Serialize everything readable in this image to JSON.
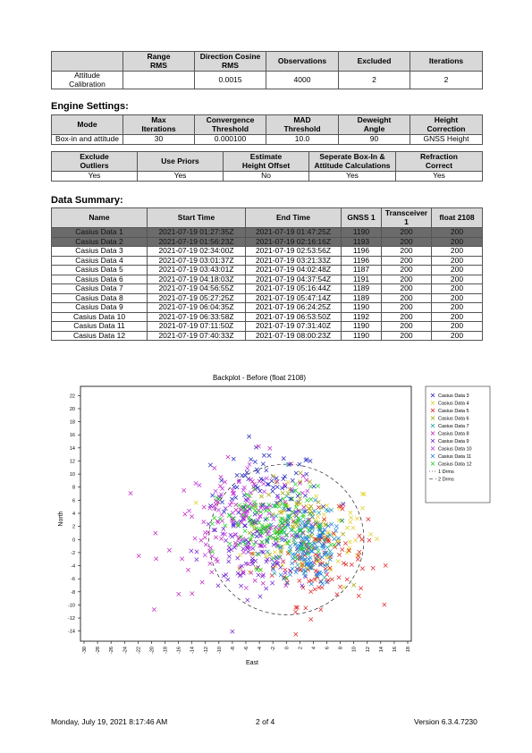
{
  "calibration": {
    "headers": [
      "",
      "Range\nRMS",
      "Direction Cosine\nRMS",
      "Observations",
      "Excluded",
      "Iterations"
    ],
    "rows": [
      [
        "Attitude\nCalibration",
        "",
        "0.0015",
        "4000",
        "2",
        "2"
      ]
    ]
  },
  "engine_settings": {
    "title": "Engine Settings:",
    "table1": {
      "headers": [
        "Mode",
        "Max\nIterations",
        "Convergence\nThreshold",
        "MAD\nThreshold",
        "Deweight\nAngle",
        "Height\nCorrection"
      ],
      "rows": [
        [
          "Box-in and attitude",
          "30",
          "0.000100",
          "10.0",
          "90",
          "GNSS Height"
        ]
      ]
    },
    "table2": {
      "headers": [
        "Exclude\nOutliers",
        "Use Priors",
        "Estimate\nHeight Offset",
        "Seperate Box-In &\nAttitude Calculations",
        "Refraction\nCorrect"
      ],
      "rows": [
        [
          "Yes",
          "Yes",
          "No",
          "Yes",
          "Yes"
        ]
      ]
    }
  },
  "data_summary": {
    "title": "Data Summary:",
    "headers": [
      "Name",
      "Start Time",
      "End Time",
      "GNSS 1",
      "Transceiver\n1",
      "float 2108"
    ],
    "rows": [
      [
        "Casius Data 1",
        "2021-07-19 01:27:35Z",
        "2021-07-19 01:47:25Z",
        "1190",
        "200",
        "200"
      ],
      [
        "Casius Data 2",
        "2021-07-19 01:56:23Z",
        "2021-07-19 02:16:16Z",
        "1193",
        "200",
        "200"
      ],
      [
        "Casius Data 3",
        "2021-07-19 02:34:00Z",
        "2021-07-19 02:53:56Z",
        "1196",
        "200",
        "200"
      ],
      [
        "Casius Data 4",
        "2021-07-19 03:01:37Z",
        "2021-07-19 03:21:33Z",
        "1196",
        "200",
        "200"
      ],
      [
        "Casius Data 5",
        "2021-07-19 03:43:01Z",
        "2021-07-19 04:02:48Z",
        "1187",
        "200",
        "200"
      ],
      [
        "Casius Data 6",
        "2021-07-19 04:18:03Z",
        "2021-07-19 04:37:54Z",
        "1191",
        "200",
        "200"
      ],
      [
        "Casius Data 7",
        "2021-07-19 04:56:55Z",
        "2021-07-19 05:16:44Z",
        "1189",
        "200",
        "200"
      ],
      [
        "Casius Data 8",
        "2021-07-19 05:27:25Z",
        "2021-07-19 05:47:14Z",
        "1189",
        "200",
        "200"
      ],
      [
        "Casius Data 9",
        "2021-07-19 06:04:35Z",
        "2021-07-19 06:24:25Z",
        "1190",
        "200",
        "200"
      ],
      [
        "Casius Data 10",
        "2021-07-19 06:33:58Z",
        "2021-07-19 06:53:50Z",
        "1192",
        "200",
        "200"
      ],
      [
        "Casius Data 11",
        "2021-07-19 07:11:50Z",
        "2021-07-19 07:31:40Z",
        "1190",
        "200",
        "200"
      ],
      [
        "Casius Data 12",
        "2021-07-19 07:40:33Z",
        "2021-07-19 08:00:23Z",
        "1190",
        "200",
        "200"
      ]
    ],
    "selected_rows": [
      0,
      1
    ],
    "selected_color": "#6b6b6b"
  },
  "chart_data": {
    "type": "scatter",
    "title": "Backplot - Before (float 2108)",
    "xlabel": "East",
    "ylabel": "North",
    "xlim": [
      -30,
      18
    ],
    "ylim": [
      -15,
      23
    ],
    "xticks": [
      -30,
      -28,
      -26,
      -24,
      -22,
      -20,
      -18,
      -16,
      -14,
      -12,
      -10,
      -8,
      -6,
      -4,
      -2,
      0,
      2,
      4,
      6,
      8,
      10,
      12,
      14,
      16,
      18
    ],
    "yticks": [
      -14,
      -12,
      -10,
      -8,
      -6,
      -4,
      -2,
      0,
      2,
      4,
      6,
      8,
      10,
      12,
      14,
      16,
      18,
      20,
      22
    ],
    "grid": false,
    "legend_position": "top-right",
    "series": [
      {
        "name": "Casius Data 3",
        "color": "#2020c0",
        "center": [
          -3,
          7
        ],
        "spread": [
          4,
          3.5
        ],
        "count": 90
      },
      {
        "name": "Casius Data 4",
        "color": "#e0d020",
        "center": [
          4,
          1
        ],
        "spread": [
          5,
          4
        ],
        "count": 90
      },
      {
        "name": "Casius Data 5",
        "color": "#e02020",
        "center": [
          5,
          -3
        ],
        "spread": [
          3.5,
          3.5
        ],
        "count": 110
      },
      {
        "name": "Casius Data 6",
        "color": "#a0a000",
        "center": [
          1,
          2
        ],
        "spread": [
          4,
          3.5
        ],
        "count": 60
      },
      {
        "name": "Casius Data 7",
        "color": "#20a0a0",
        "center": [
          2,
          0
        ],
        "spread": [
          4,
          3.5
        ],
        "count": 60
      },
      {
        "name": "Casius Data 8",
        "color": "#c020c0",
        "center": [
          -6,
          2
        ],
        "spread": [
          6,
          5
        ],
        "count": 100
      },
      {
        "name": "Casius Data 9",
        "color": "#7020d0",
        "center": [
          -6,
          -2
        ],
        "spread": [
          3.5,
          3
        ],
        "count": 90
      },
      {
        "name": "Casius Data 10",
        "color": "#c030e0",
        "center": [
          -5,
          4
        ],
        "spread": [
          5,
          4
        ],
        "count": 80
      },
      {
        "name": "Casius Data 11",
        "color": "#2080e0",
        "center": [
          3,
          -1
        ],
        "spread": [
          2,
          3
        ],
        "count": 130
      },
      {
        "name": "Casius Data 12",
        "color": "#20d020",
        "center": [
          -2,
          2
        ],
        "spread": [
          4,
          3
        ],
        "count": 130
      }
    ],
    "reference": [
      {
        "name": "1 Drms",
        "dash": "1,2"
      },
      {
        "name": "2 Drms",
        "dash": "4,3",
        "center": [
          0,
          0
        ],
        "radius": 11.5
      }
    ]
  },
  "footer": {
    "date": "Monday, July 19, 2021 8:17:46 AM",
    "page": "2 of 4",
    "version": "Version 6.3.4.7230"
  }
}
